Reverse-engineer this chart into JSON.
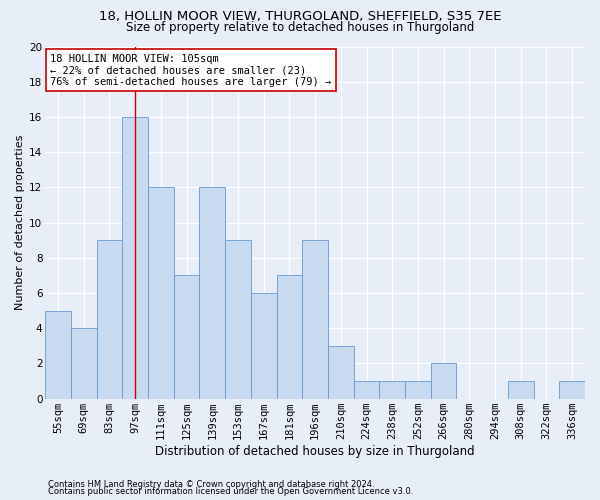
{
  "title1": "18, HOLLIN MOOR VIEW, THURGOLAND, SHEFFIELD, S35 7EE",
  "title2": "Size of property relative to detached houses in Thurgoland",
  "xlabel": "Distribution of detached houses by size in Thurgoland",
  "ylabel": "Number of detached properties",
  "bins": [
    "55sqm",
    "69sqm",
    "83sqm",
    "97sqm",
    "111sqm",
    "125sqm",
    "139sqm",
    "153sqm",
    "167sqm",
    "181sqm",
    "196sqm",
    "210sqm",
    "224sqm",
    "238sqm",
    "252sqm",
    "266sqm",
    "280sqm",
    "294sqm",
    "308sqm",
    "322sqm",
    "336sqm"
  ],
  "values": [
    5,
    4,
    9,
    16,
    12,
    7,
    12,
    9,
    6,
    7,
    9,
    3,
    1,
    1,
    1,
    2,
    0,
    0,
    1,
    0,
    1
  ],
  "bar_color": "#c8daf0",
  "bar_edge_color": "#6699cc",
  "highlight_bin_index": 3,
  "highlight_line_color": "#cc0000",
  "annotation_line1": "18 HOLLIN MOOR VIEW: 105sqm",
  "annotation_line2": "← 22% of detached houses are smaller (23)",
  "annotation_line3": "76% of semi-detached houses are larger (79) →",
  "annotation_box_color": "#ffffff",
  "annotation_box_edge": "#cc0000",
  "footer1": "Contains HM Land Registry data © Crown copyright and database right 2024.",
  "footer2": "Contains public sector information licensed under the Open Government Licence v3.0.",
  "ylim": [
    0,
    20
  ],
  "yticks": [
    0,
    2,
    4,
    6,
    8,
    10,
    12,
    14,
    16,
    18,
    20
  ],
  "bg_color": "#e8eef8",
  "plot_bg_color": "#e8eef8",
  "grid_color": "#ffffff",
  "title1_fontsize": 9.5,
  "title2_fontsize": 8.5,
  "xlabel_fontsize": 8.5,
  "ylabel_fontsize": 8,
  "tick_fontsize": 7.5,
  "annotation_fontsize": 7.5,
  "footer_fontsize": 6.0
}
